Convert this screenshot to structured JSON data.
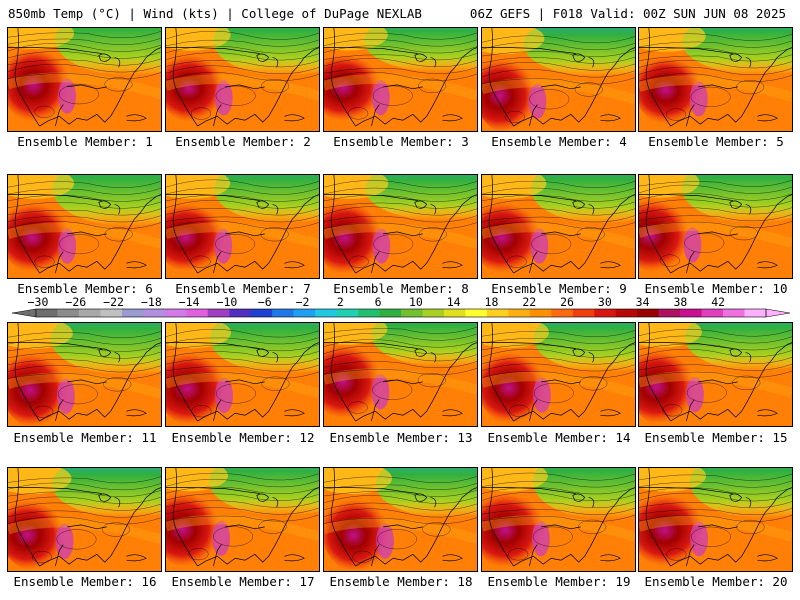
{
  "header": {
    "left": "850mb Temp (°C) | Wind (kts) | College of DuPage NEXLAB",
    "right": "06Z GEFS | F018 Valid: 00Z SUN JUN 08 2025"
  },
  "panels": [
    {
      "label": "Ensemble Member: 1"
    },
    {
      "label": "Ensemble Member: 2"
    },
    {
      "label": "Ensemble Member: 3"
    },
    {
      "label": "Ensemble Member: 4"
    },
    {
      "label": "Ensemble Member: 5"
    },
    {
      "label": "Ensemble Member: 6"
    },
    {
      "label": "Ensemble Member: 7"
    },
    {
      "label": "Ensemble Member: 8"
    },
    {
      "label": "Ensemble Member: 9"
    },
    {
      "label": "Ensemble Member: 10"
    },
    {
      "label": "Ensemble Member: 11"
    },
    {
      "label": "Ensemble Member: 12"
    },
    {
      "label": "Ensemble Member: 13"
    },
    {
      "label": "Ensemble Member: 14"
    },
    {
      "label": "Ensemble Member: 15"
    },
    {
      "label": "Ensemble Member: 16"
    },
    {
      "label": "Ensemble Member: 17"
    },
    {
      "label": "Ensemble Member: 18"
    },
    {
      "label": "Ensemble Member: 19"
    },
    {
      "label": "Ensemble Member: 20"
    }
  ],
  "colorbar": {
    "tick_labels": [
      "−30",
      "−26",
      "−22",
      "−18",
      "−14",
      "−10",
      "−6",
      "−2",
      "2",
      "6",
      "10",
      "14",
      "18",
      "22",
      "26",
      "30",
      "34",
      "38",
      "42"
    ],
    "colors": [
      "#6e6e6e",
      "#8c8c8c",
      "#a8a8a8",
      "#c0c0c0",
      "#9b9bd0",
      "#b48ee0",
      "#d27ae8",
      "#e060e0",
      "#a040c0",
      "#5030c0",
      "#2040d0",
      "#1e78e6",
      "#20a0f0",
      "#20c8e0",
      "#20d0b0",
      "#20c070",
      "#30b040",
      "#70c030",
      "#a8d020",
      "#e0e020",
      "#ffff30",
      "#ffd020",
      "#ffb010",
      "#ff9000",
      "#ff6a10",
      "#f04010",
      "#d81810",
      "#b80808",
      "#980000",
      "#b01060",
      "#c81090",
      "#e040c0",
      "#f070e0",
      "#ffb0ff"
    ]
  }
}
